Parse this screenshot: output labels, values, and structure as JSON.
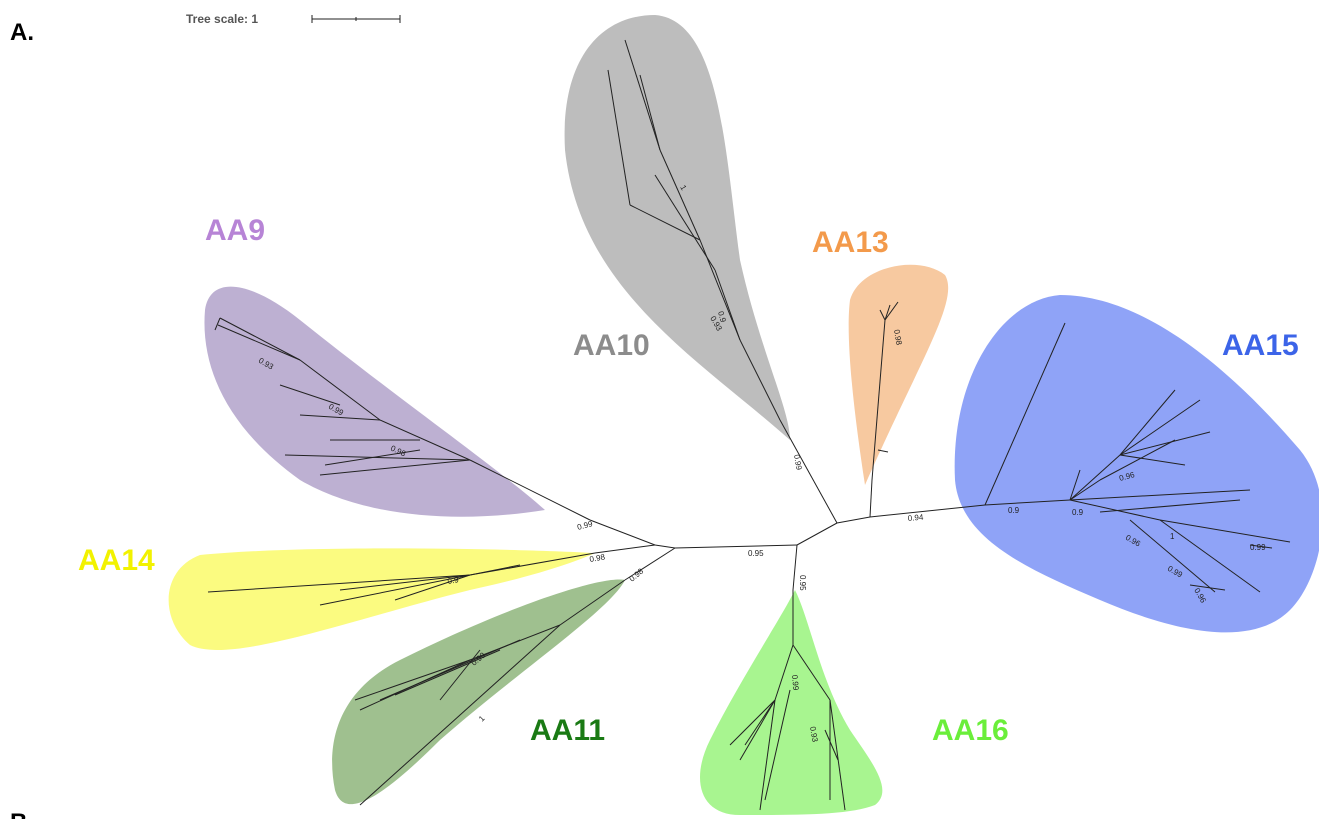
{
  "panel_labels": [
    "A.",
    "B"
  ],
  "scale_bar": {
    "label": "Tree scale: 1"
  },
  "clades": [
    {
      "label": "AA10",
      "color": "#8c8c8c"
    },
    {
      "label": "AA13",
      "color": "#f39a4b"
    },
    {
      "label": "AA15",
      "color": "#3c64e8"
    },
    {
      "label": "AA9",
      "color": "#b784d6"
    },
    {
      "label": "AA14",
      "color": "#f2f200"
    },
    {
      "label": "AA11",
      "color": "#1a7a14"
    },
    {
      "label": "AA16",
      "color": "#6aee3a"
    }
  ],
  "support_values": [
    "0.99",
    "0.98",
    "0.98",
    "0.95",
    "0.95",
    "0.99",
    "0.94",
    "0.9",
    "0.9",
    "0.96",
    "0.96",
    "1",
    "0.99",
    "0.99",
    "0.93",
    "0.9",
    "1",
    "0.98",
    "0.93",
    "0.99",
    "0.98",
    "0.9",
    "0.99",
    "1",
    "0.99",
    "0.93",
    "0.96"
  ]
}
